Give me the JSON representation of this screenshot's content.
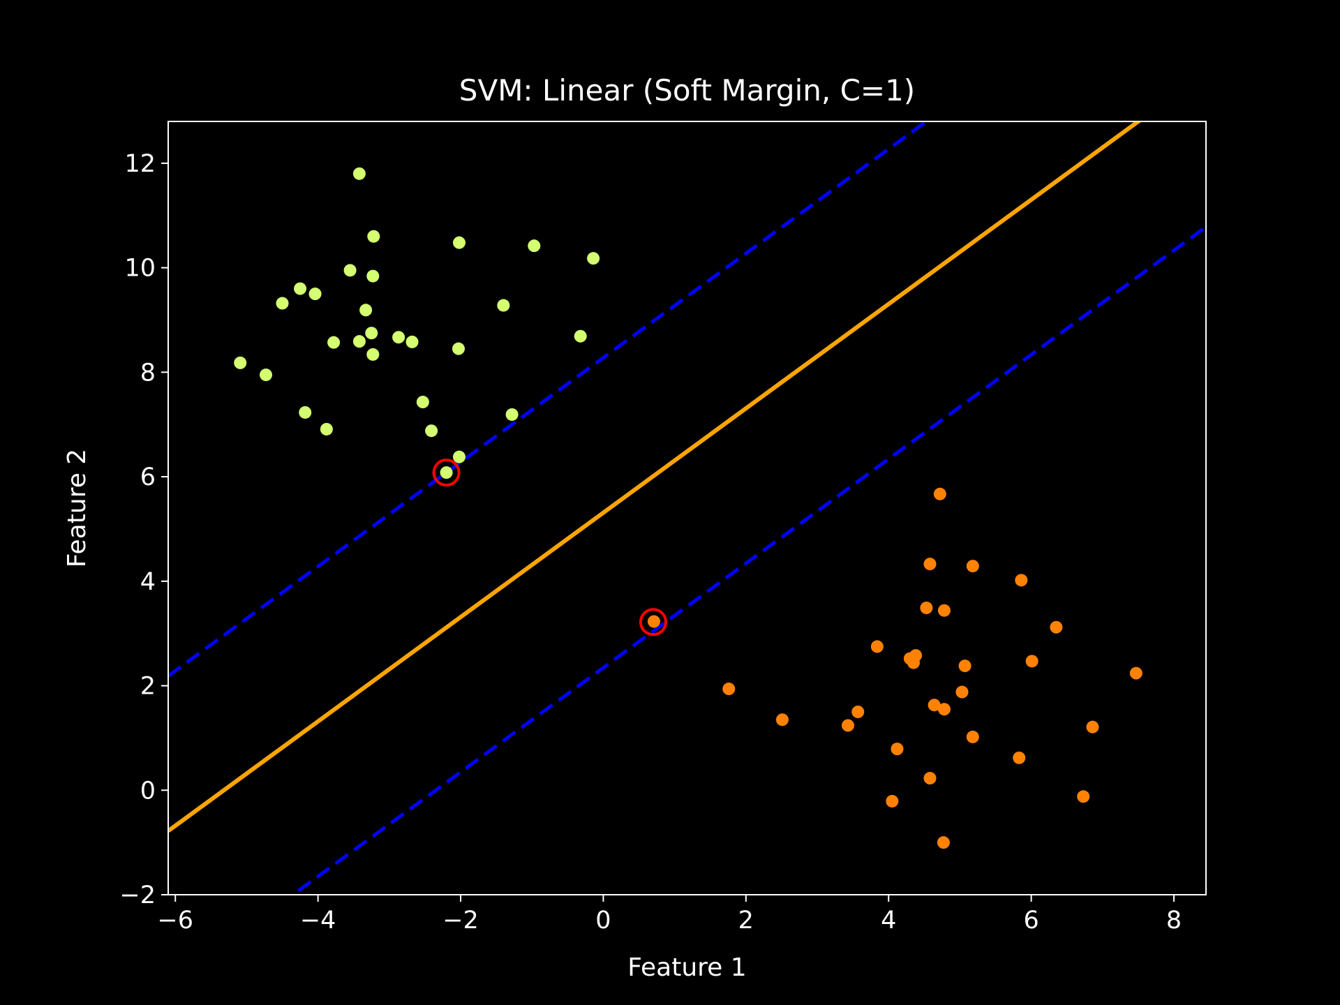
{
  "chart_data": {
    "type": "scatter",
    "title": "SVM: Linear (Soft Margin, C=1)",
    "xlabel": "Feature 1",
    "ylabel": "Feature 2",
    "xlim": [
      -6.1,
      8.45
    ],
    "ylim": [
      -2.0,
      12.8
    ],
    "xticks": [
      -6,
      -4,
      -2,
      0,
      2,
      4,
      6,
      8
    ],
    "yticks": [
      -2,
      0,
      2,
      4,
      6,
      8,
      10,
      12
    ],
    "grid": false,
    "legend": "none",
    "colors": {
      "background": "#000000",
      "axes": "#ffffff",
      "class_a": "#d4ff70",
      "class_b": "#ff8205",
      "decision_boundary": "#ffa500",
      "margins": "#0000ff",
      "support_vectors": "#ff0000"
    },
    "series": [
      {
        "points": [
          [
            -3.42,
            11.8
          ],
          [
            -3.22,
            10.6
          ],
          [
            -2.02,
            10.48
          ],
          [
            -0.97,
            10.42
          ],
          [
            -0.14,
            10.18
          ],
          [
            -3.55,
            9.95
          ],
          [
            -3.23,
            9.84
          ],
          [
            -4.25,
            9.6
          ],
          [
            -4.04,
            9.5
          ],
          [
            -4.5,
            9.32
          ],
          [
            -3.33,
            9.19
          ],
          [
            -1.4,
            9.28
          ],
          [
            -3.25,
            8.75
          ],
          [
            -2.87,
            8.67
          ],
          [
            -2.68,
            8.58
          ],
          [
            -3.78,
            8.57
          ],
          [
            -3.42,
            8.59
          ],
          [
            -2.03,
            8.45
          ],
          [
            -3.23,
            8.34
          ],
          [
            -0.32,
            8.69
          ],
          [
            -5.09,
            8.18
          ],
          [
            -4.73,
            7.95
          ],
          [
            -2.53,
            7.43
          ],
          [
            -4.18,
            7.23
          ],
          [
            -1.28,
            7.19
          ],
          [
            -3.88,
            6.91
          ],
          [
            -2.41,
            6.88
          ],
          [
            -2.02,
            6.38
          ],
          [
            -2.2,
            6.08
          ]
        ]
      },
      {
        "points": [
          [
            4.72,
            5.67
          ],
          [
            4.58,
            4.33
          ],
          [
            5.18,
            4.29
          ],
          [
            5.86,
            4.02
          ],
          [
            4.53,
            3.49
          ],
          [
            4.78,
            3.44
          ],
          [
            0.71,
            3.23
          ],
          [
            6.35,
            3.12
          ],
          [
            3.84,
            2.75
          ],
          [
            4.38,
            2.58
          ],
          [
            4.3,
            2.52
          ],
          [
            4.35,
            2.44
          ],
          [
            6.01,
            2.47
          ],
          [
            5.07,
            2.38
          ],
          [
            7.47,
            2.24
          ],
          [
            1.76,
            1.94
          ],
          [
            5.03,
            1.88
          ],
          [
            4.64,
            1.63
          ],
          [
            4.78,
            1.55
          ],
          [
            3.57,
            1.5
          ],
          [
            2.51,
            1.35
          ],
          [
            3.43,
            1.24
          ],
          [
            6.86,
            1.21
          ],
          [
            5.18,
            1.02
          ],
          [
            4.12,
            0.79
          ],
          [
            5.83,
            0.62
          ],
          [
            4.58,
            0.23
          ],
          [
            4.05,
            -0.21
          ],
          [
            6.73,
            -0.12
          ],
          [
            4.77,
            -1.0
          ]
        ]
      }
    ],
    "decision_boundary": {
      "slope": 0.9985,
      "intercept": 5.3112
    },
    "margins": [
      {
        "slope": 0.9985,
        "intercept": 8.2775
      },
      {
        "slope": 0.9985,
        "intercept": 2.3449
      }
    ],
    "support_vectors": [
      [
        -2.2,
        6.08
      ],
      [
        0.7,
        3.22
      ]
    ]
  }
}
